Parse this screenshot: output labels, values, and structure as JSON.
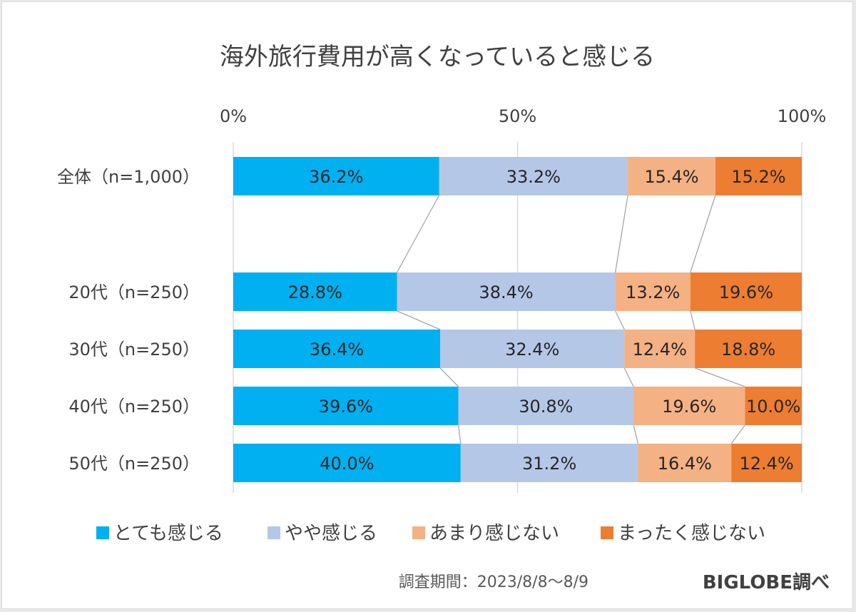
{
  "chart_data": {
    "type": "bar",
    "orientation": "horizontal",
    "stacked": "percent",
    "title": "海外旅行費用が高くなっていると感じる",
    "xlim": [
      0,
      100
    ],
    "ticks": [
      "0%",
      "50%",
      "100%"
    ],
    "categories": [
      "全体（n=1,000）",
      "20代（n=250）",
      "30代（n=250）",
      "40代（n=250）",
      "50代（n=250）"
    ],
    "series": [
      {
        "name": "とても感じる",
        "color": "#00b0f0",
        "values": [
          36.2,
          28.8,
          36.4,
          39.6,
          40.0
        ],
        "labels": [
          "36.2%",
          "28.8%",
          "36.4%",
          "39.6%",
          "40.0%"
        ]
      },
      {
        "name": "やや感じる",
        "color": "#b4c7e7",
        "values": [
          33.2,
          38.4,
          32.4,
          30.8,
          31.2
        ],
        "labels": [
          "33.2%",
          "38.4%",
          "32.4%",
          "30.8%",
          "31.2%"
        ]
      },
      {
        "name": "あまり感じない",
        "color": "#f4b183",
        "values": [
          15.4,
          13.2,
          12.4,
          19.6,
          16.4
        ],
        "labels": [
          "15.4%",
          "13.2%",
          "12.4%",
          "19.6%",
          "16.4%"
        ]
      },
      {
        "name": "まったく感じない",
        "color": "#ed7d31",
        "values": [
          15.2,
          19.6,
          18.8,
          10.0,
          12.4
        ],
        "labels": [
          "15.2%",
          "19.6%",
          "18.8%",
          "10.0%",
          "12.4%"
        ]
      }
    ],
    "grid": true,
    "series_lines": true,
    "legend_position": "bottom"
  },
  "footer": {
    "period": "調査期間：2023/8/8～8/9",
    "source": "BIGLOBE調べ"
  },
  "colors": {
    "gridline": "#d9d9d9",
    "connector": "#a6a6a6",
    "text": "#404040"
  }
}
